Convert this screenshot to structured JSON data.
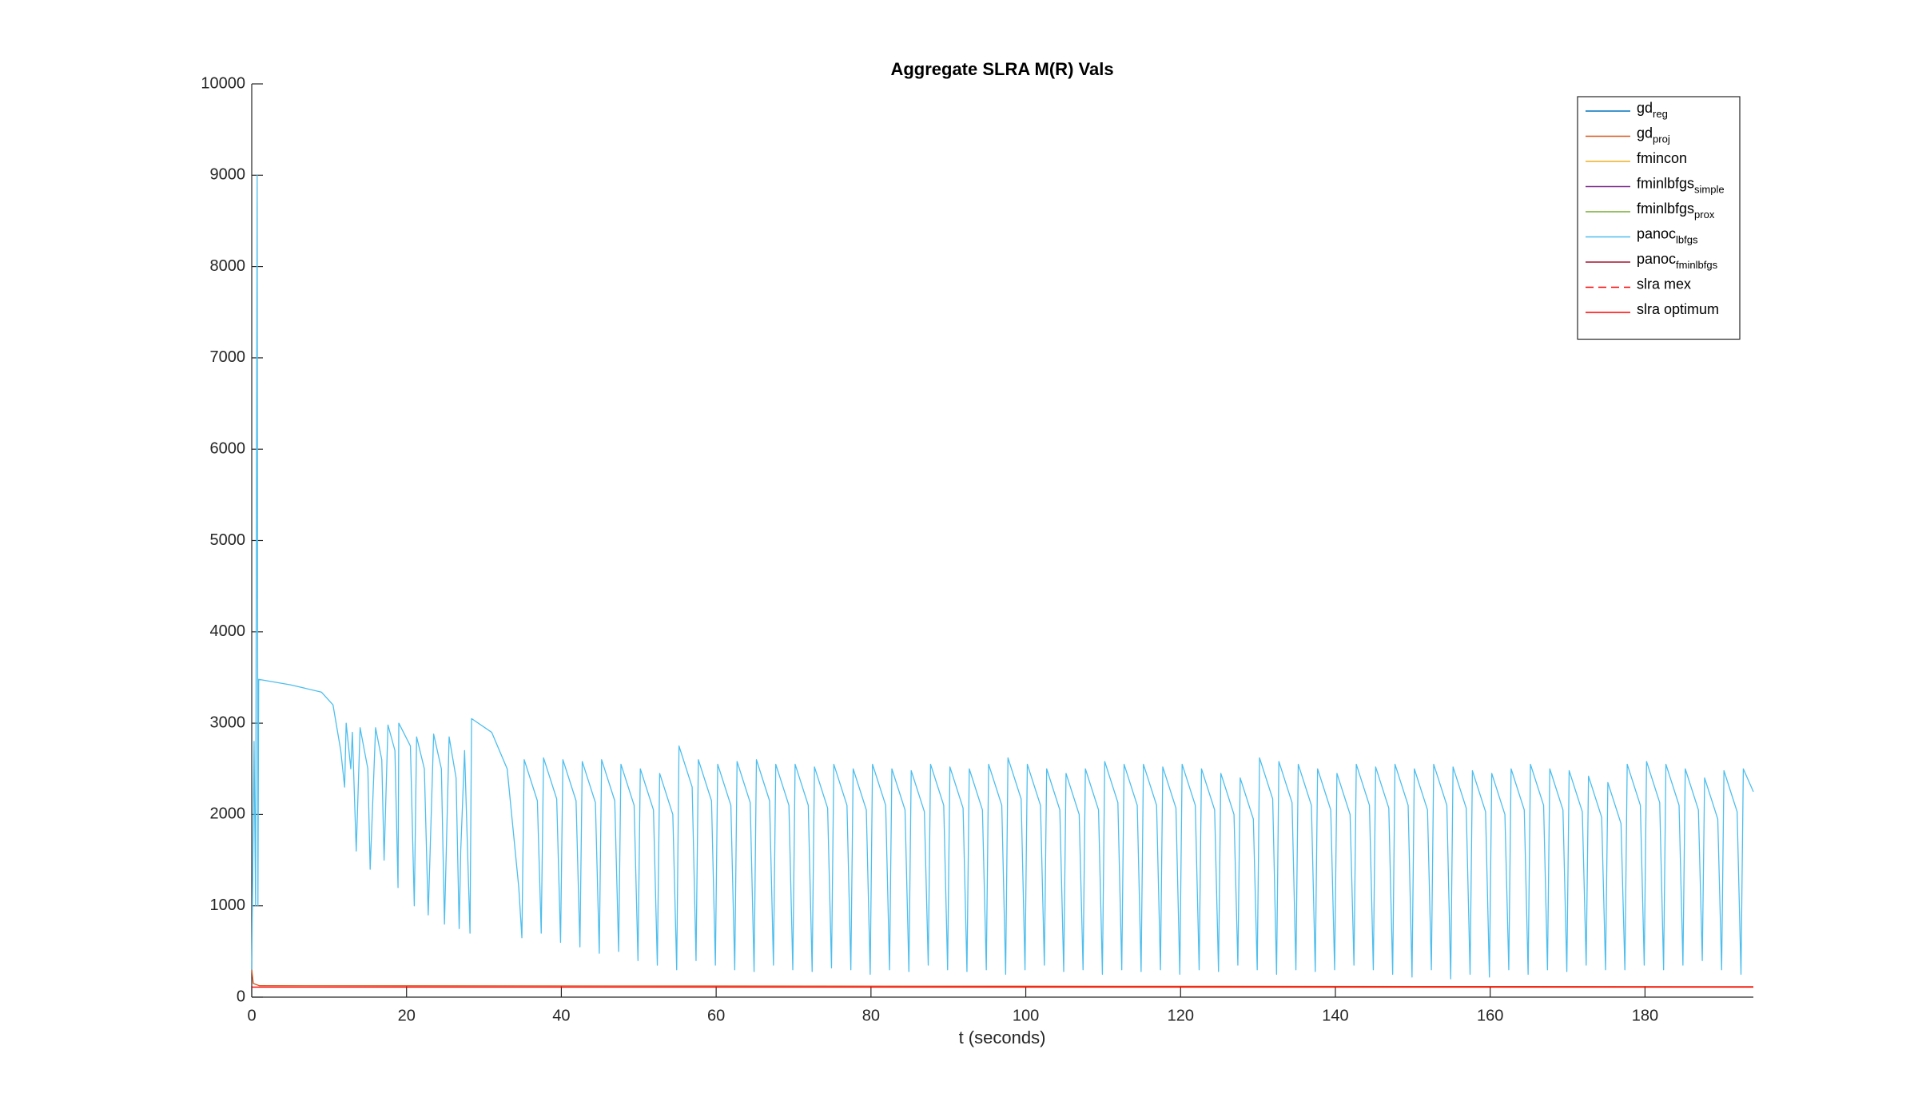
{
  "chart_data": {
    "type": "line",
    "title": "Aggregate SLRA M(R) Vals",
    "x_label": "t (seconds)",
    "xlim": [
      0,
      194
    ],
    "xticks": [
      0,
      20,
      40,
      60,
      80,
      100,
      120,
      140,
      160,
      180
    ],
    "ylim": [
      0,
      10000
    ],
    "yticks": [
      0,
      1000,
      2000,
      3000,
      4000,
      5000,
      6000,
      7000,
      8000,
      9000,
      10000
    ],
    "legend": "top-right",
    "series": [
      {
        "name": "gd",
        "name_sub": "reg",
        "color": "#0072BD"
      },
      {
        "name": "gd",
        "name_sub": "proj",
        "color": "#D95319",
        "x": [
          0,
          0.2,
          1,
          194
        ],
        "values": [
          300,
          150,
          125,
          115
        ]
      },
      {
        "name": "fmincon",
        "color": "#EDB120"
      },
      {
        "name": "fminlbfgs",
        "name_sub": "simple",
        "color": "#7E2F8E"
      },
      {
        "name": "fminlbfgs",
        "name_sub": "prox",
        "color": "#77AC30"
      },
      {
        "name": "panoc",
        "name_sub": "lbfgs",
        "color": "#4DBEEE",
        "x": [
          0,
          0.3,
          0.5,
          0.7,
          0.8,
          0.9,
          5,
          9,
          10.5,
          11.5,
          12,
          12.2,
          12.8,
          13.0,
          13.5,
          14,
          15,
          15.3,
          16,
          16.8,
          17.1,
          17.6,
          18.5,
          18.9,
          19,
          20.5,
          21,
          21.3,
          22.3,
          22.8,
          23.5,
          24.5,
          24.9,
          25.5,
          26.4,
          26.8,
          27,
          27.5,
          28.2,
          28.4,
          31,
          33,
          34.5,
          34.9,
          35.2,
          36.9,
          37.4,
          37.7,
          39.4,
          39.9,
          40.2,
          41.9,
          42.4,
          42.7,
          44.4,
          44.9,
          45.2,
          46.9,
          47.4,
          47.7,
          49.4,
          49.9,
          50.2,
          51.9,
          52.4,
          52.7,
          54.4,
          54.9,
          55.2,
          56.9,
          57.4,
          57.7,
          59.4,
          59.9,
          60.2,
          61.9,
          62.4,
          62.7,
          64.4,
          64.9,
          65.2,
          66.9,
          67.4,
          67.7,
          69.4,
          69.9,
          70.2,
          71.9,
          72.4,
          72.7,
          74.4,
          74.9,
          75.2,
          76.9,
          77.4,
          77.7,
          79.4,
          79.9,
          80.2,
          81.9,
          82.4,
          82.7,
          84.4,
          84.9,
          85.2,
          86.9,
          87.4,
          87.7,
          89.4,
          89.9,
          90.2,
          91.9,
          92.4,
          92.7,
          94.4,
          94.9,
          95.2,
          96.9,
          97.4,
          97.7,
          99.4,
          99.9,
          100.2,
          101.9,
          102.4,
          102.7,
          104.4,
          104.9,
          105.2,
          106.9,
          107.4,
          107.7,
          109.4,
          109.9,
          110.2,
          111.9,
          112.4,
          112.7,
          114.4,
          114.9,
          115.2,
          116.9,
          117.4,
          117.7,
          119.4,
          119.9,
          120.2,
          121.9,
          122.4,
          122.7,
          124.4,
          124.9,
          125.2,
          126.9,
          127.4,
          127.7,
          129.4,
          129.9,
          130.2,
          131.9,
          132.4,
          132.7,
          134.4,
          134.9,
          135.2,
          136.9,
          137.4,
          137.7,
          139.4,
          139.9,
          140.2,
          141.9,
          142.4,
          142.7,
          144.4,
          144.9,
          145.2,
          146.9,
          147.4,
          147.7,
          149.4,
          149.9,
          150.2,
          151.9,
          152.4,
          152.7,
          154.4,
          154.9,
          155.2,
          156.9,
          157.4,
          157.7,
          159.4,
          159.9,
          160.2,
          161.9,
          162.4,
          162.7,
          164.4,
          164.9,
          165.2,
          166.9,
          167.4,
          167.7,
          169.4,
          169.9,
          170.2,
          171.9,
          172.4,
          172.7,
          174.4,
          174.9,
          175.2,
          176.9,
          177.4,
          177.7,
          179.4,
          179.9,
          180.2,
          181.9,
          182.4,
          182.7,
          184.4,
          184.9,
          185.2,
          186.9,
          187.4,
          187.7,
          189.4,
          189.9,
          190.2,
          191.9,
          192.4,
          192.7,
          194
        ],
        "values": [
          300,
          2800,
          1000,
          9000,
          1000,
          3480,
          3420,
          3340,
          3200,
          2700,
          2300,
          3000,
          2500,
          2900,
          1600,
          2950,
          2500,
          1400,
          2950,
          2600,
          1500,
          2980,
          2700,
          1200,
          3000,
          2750,
          1000,
          2850,
          2500,
          900,
          2880,
          2500,
          800,
          2850,
          2400,
          750,
          1600,
          2700,
          700,
          3050,
          2900,
          2500,
          1200,
          650,
          2600,
          2150,
          700,
          2620,
          2170,
          600,
          2600,
          2150,
          550,
          2580,
          2130,
          480,
          2600,
          2150,
          500,
          2550,
          2100,
          400,
          2500,
          2050,
          350,
          2450,
          2000,
          300,
          2750,
          2300,
          400,
          2600,
          2150,
          350,
          2550,
          2100,
          300,
          2580,
          2130,
          280,
          2600,
          2150,
          350,
          2550,
          2100,
          300,
          2550,
          2100,
          280,
          2520,
          2070,
          320,
          2550,
          2100,
          300,
          2500,
          2050,
          250,
          2550,
          2100,
          300,
          2500,
          2050,
          280,
          2480,
          2030,
          350,
          2550,
          2100,
          300,
          2520,
          2070,
          280,
          2500,
          2050,
          300,
          2550,
          2100,
          250,
          2620,
          2170,
          300,
          2550,
          2100,
          350,
          2500,
          2050,
          280,
          2450,
          2000,
          300,
          2500,
          2050,
          250,
          2580,
          2130,
          300,
          2550,
          2100,
          280,
          2550,
          2100,
          300,
          2520,
          2070,
          250,
          2550,
          2100,
          300,
          2500,
          2050,
          280,
          2450,
          2000,
          350,
          2400,
          1950,
          300,
          2620,
          2170,
          250,
          2580,
          2130,
          300,
          2550,
          2100,
          280,
          2500,
          2050,
          300,
          2450,
          2000,
          350,
          2550,
          2100,
          300,
          2520,
          2070,
          250,
          2550,
          2100,
          220,
          2500,
          2050,
          300,
          2550,
          2100,
          200,
          2520,
          2070,
          250,
          2480,
          2030,
          220,
          2450,
          2000,
          300,
          2500,
          2050,
          250,
          2550,
          2100,
          300,
          2500,
          2050,
          280,
          2480,
          2030,
          350,
          2420,
          1970,
          300,
          2350,
          1900,
          300,
          2550,
          2100,
          350,
          2580,
          2130,
          300,
          2550,
          2100,
          350,
          2500,
          2050,
          400,
          2400,
          1950,
          300,
          2480,
          2030,
          250,
          2500,
          2250
        ]
      },
      {
        "name": "panoc",
        "name_sub": "fminlbfgs",
        "color": "#A2142F"
      },
      {
        "name": "slra mex",
        "color": "#FF0000",
        "style": "dashed"
      },
      {
        "name": "slra optimum",
        "color": "#FF0000",
        "x": [
          0,
          194
        ],
        "values": [
          110,
          110
        ]
      }
    ]
  }
}
